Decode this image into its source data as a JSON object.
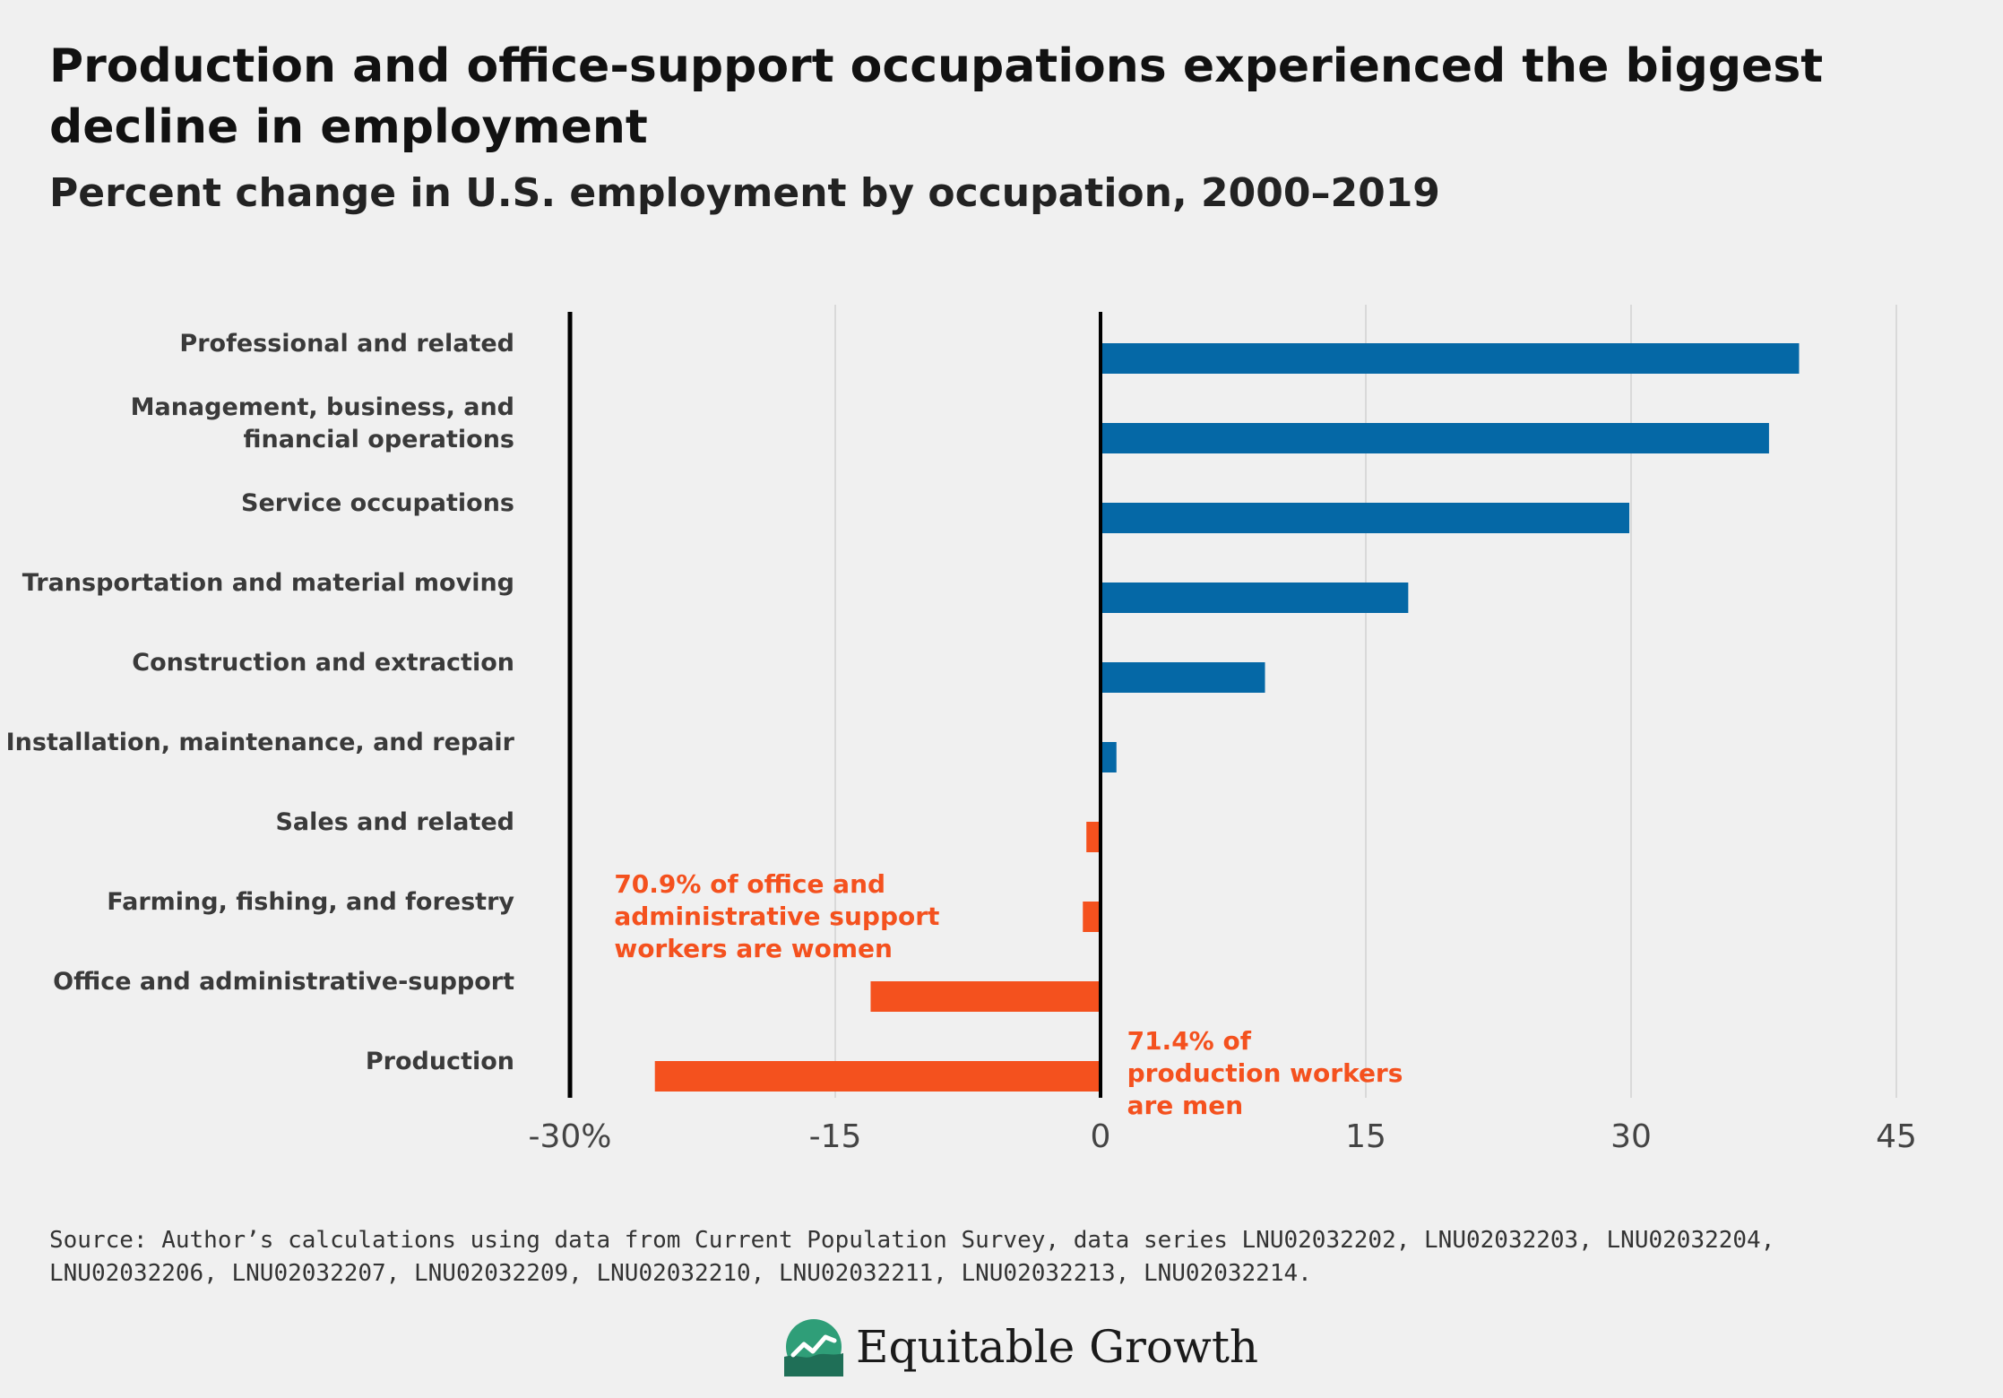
{
  "title": "Production and office-support occupations experienced the biggest decline in employment",
  "subtitle": "Percent change in U.S. employment by occupation, 2000–2019",
  "source": "Source: Author’s calculations using data from Current Population Survey, data series LNU02032202, LNU02032203, LNU02032204, LNU02032206, LNU02032207, LNU02032209, LNU02032210, LNU02032211, LNU02032213, LNU02032214.",
  "brand": {
    "name": "Equitable Growth",
    "icon": "equitable-growth-logo-icon"
  },
  "colors": {
    "positive": "#0568a6",
    "negative": "#f4511e",
    "grid": "#d9d9d9",
    "axis": "#000000"
  },
  "chart_data": {
    "type": "bar",
    "orientation": "horizontal",
    "categories": [
      [
        "Professional and related"
      ],
      [
        "Management, business, and",
        "financial operations"
      ],
      [
        "Service occupations"
      ],
      [
        "Transportation and material moving"
      ],
      [
        "Construction and extraction"
      ],
      [
        "Installation, maintenance, and repair"
      ],
      [
        "Sales and related"
      ],
      [
        "Farming, fishing, and forestry"
      ],
      [
        "Office and administrative-support"
      ],
      [
        "Production"
      ]
    ],
    "values": [
      39.5,
      37.8,
      29.9,
      17.4,
      9.3,
      0.9,
      -0.8,
      -1.0,
      -13.0,
      -25.2
    ],
    "xlim": [
      -30,
      45
    ],
    "xticks": [
      -30,
      -15,
      0,
      15,
      30,
      45
    ],
    "xtick_labels": [
      "-30%",
      "-15",
      "0",
      "15",
      "30",
      "45"
    ],
    "grid": true,
    "annotations": [
      {
        "lines": [
          "70.9% of office and",
          "administrative support",
          "workers are women"
        ],
        "x": -27.5,
        "category_index": 8,
        "position": "above"
      },
      {
        "lines": [
          "71.4% of",
          "production workers",
          "are men"
        ],
        "x": 1.5,
        "category_index": 9,
        "position": "right"
      }
    ]
  }
}
